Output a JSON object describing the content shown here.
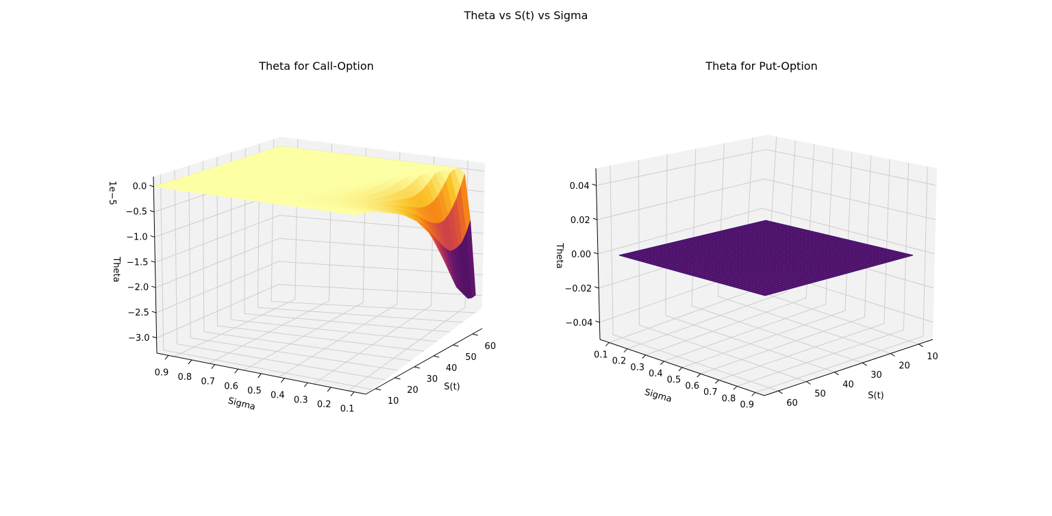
{
  "figure": {
    "suptitle": "Theta vs S(t) vs Sigma"
  },
  "chart_data": [
    {
      "type": "surface3d",
      "title": "Theta for Call-Option",
      "xlabel": "S(t)",
      "ylabel": "Sigma",
      "zlabel": "Theta",
      "offset_text": "1e−5",
      "colormap": "inferno",
      "x_ticks": [
        10,
        20,
        30,
        40,
        50,
        60
      ],
      "y_ticks": [
        0.1,
        0.2,
        0.3,
        0.4,
        0.5,
        0.6,
        0.7,
        0.8,
        0.9
      ],
      "z_ticks": [
        0.0,
        -0.5,
        -1.0,
        -1.5,
        -2.0,
        -2.5,
        -3.0
      ],
      "xlim": [
        5,
        65
      ],
      "ylim": [
        0.05,
        0.95
      ],
      "zlim": [
        -3.3,
        0.2
      ],
      "surface": {
        "S_range": [
          5,
          63
        ],
        "sigma_range": [
          0.05,
          0.95
        ],
        "sample_edge_S_high": [
          {
            "sigma": 0.1,
            "theta": -3.0
          },
          {
            "sigma": 0.2,
            "theta": -2.5
          },
          {
            "sigma": 0.3,
            "theta": -1.7
          },
          {
            "sigma": 0.4,
            "theta": -1.0
          },
          {
            "sigma": 0.5,
            "theta": -0.6
          },
          {
            "sigma": 0.6,
            "theta": -0.35
          },
          {
            "sigma": 0.7,
            "theta": -0.2
          },
          {
            "sigma": 0.8,
            "theta": -0.08
          },
          {
            "sigma": 0.9,
            "theta": 0.0
          }
        ]
      },
      "grid": true
    },
    {
      "type": "surface3d",
      "title": "Theta for Put-Option",
      "xlabel": "S(t)",
      "ylabel": "Sigma",
      "zlabel": "Theta",
      "colormap": "inferno",
      "x_ticks": [
        10,
        20,
        30,
        40,
        50,
        60
      ],
      "y_ticks": [
        0.1,
        0.2,
        0.3,
        0.4,
        0.5,
        0.6,
        0.7,
        0.8,
        0.9
      ],
      "z_ticks": [
        0.04,
        0.02,
        0.0,
        -0.02,
        -0.04
      ],
      "z_tick_labels": [
        "0.04",
        "0.02",
        "0.00",
        "−0.02",
        "−0.04"
      ],
      "xlim": [
        5,
        65
      ],
      "ylim": [
        0.05,
        0.95
      ],
      "zlim": [
        -0.05,
        0.05
      ],
      "surface": {
        "S_range": [
          5,
          63
        ],
        "sigma_range": [
          0.05,
          0.95
        ],
        "theta": 0.0
      },
      "grid": true
    }
  ],
  "colors": {
    "pane": "#f2f2f2",
    "grid": "#cdcdcd",
    "put_surface": "#641a80",
    "put_edge": "#3b0f70"
  }
}
